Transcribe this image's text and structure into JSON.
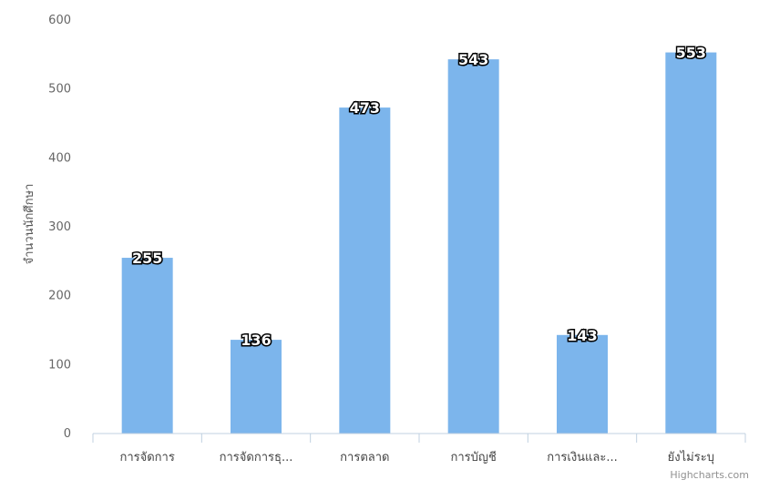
{
  "chart_data": {
    "type": "bar",
    "title": "",
    "xlabel": "",
    "ylabel": "จำนวนนักศึกษา",
    "categories": [
      "การจัดการ",
      "การจัดการธุ...",
      "การตลาด",
      "การบัญชี",
      "การเงินและ...",
      "ยังไม่ระบุ"
    ],
    "values": [
      255,
      136,
      473,
      543,
      143,
      553
    ],
    "ylim": [
      0,
      600
    ],
    "yticks": [
      "0",
      "100",
      "200",
      "300",
      "400",
      "500",
      "600"
    ],
    "grid": false,
    "legend": "none",
    "data_labels": true
  },
  "credits": "Highcharts.com",
  "colors": {
    "bar": "#7cb5ec",
    "axis": "#c0d0e0",
    "label_fill": "#ffffff",
    "label_stroke": "#000000"
  }
}
